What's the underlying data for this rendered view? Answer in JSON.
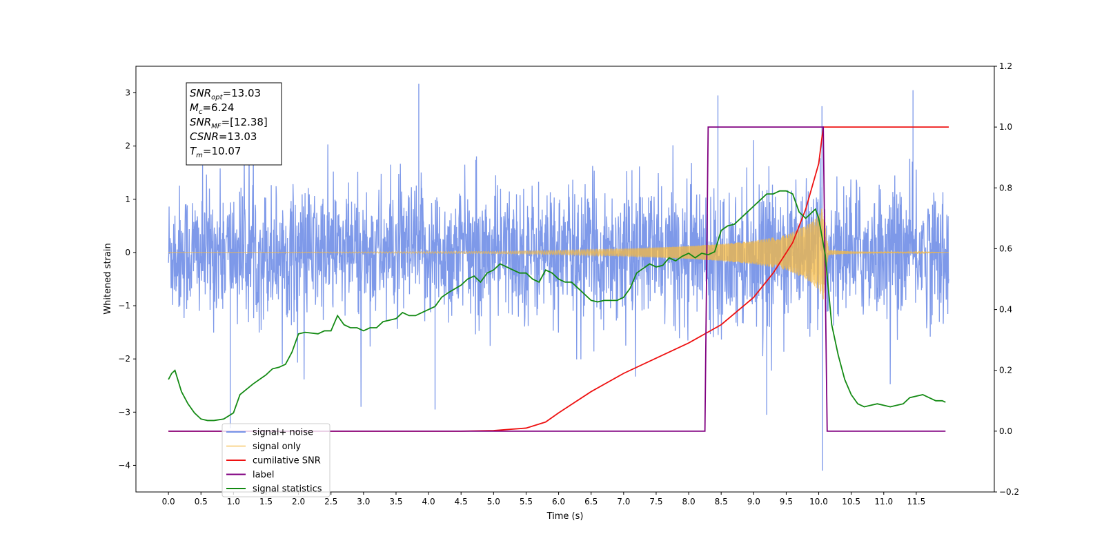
{
  "chart_data": {
    "type": "line",
    "xlabel": "Time (s)",
    "ylabel": "Whitened strain",
    "xlim": [
      -0.5,
      12.7
    ],
    "ylim": [
      -4.5,
      3.5
    ],
    "y2lim": [
      -0.2,
      1.2
    ],
    "x_ticks": [
      0.0,
      0.5,
      1.0,
      1.5,
      2.0,
      2.5,
      3.0,
      3.5,
      4.0,
      4.5,
      5.0,
      5.5,
      6.0,
      6.5,
      7.0,
      7.5,
      8.0,
      8.5,
      9.0,
      9.5,
      10.0,
      10.5,
      11.0,
      11.5
    ],
    "x_tick_labels": [
      "0.0",
      "0.5",
      "1.0",
      "1.5",
      "2.0",
      "2.5",
      "3.0",
      "3.5",
      "4.0",
      "4.5",
      "5.0",
      "5.5",
      "6.0",
      "6.5",
      "7.0",
      "7.5",
      "8.0",
      "8.5",
      "9.0",
      "9.5",
      "10.0",
      "10.5",
      "11.0",
      "11.5"
    ],
    "y_ticks": [
      3,
      2,
      1,
      0,
      -1,
      -2,
      -3,
      -4
    ],
    "y_tick_labels": [
      "3",
      "2",
      "1",
      "0",
      "−1",
      "−2",
      "−3",
      "−4"
    ],
    "y2_ticks": [
      1.2,
      1.0,
      0.8,
      0.6,
      0.4,
      0.2,
      0.0,
      -0.2
    ],
    "y2_tick_labels": [
      "1.2",
      "1.0",
      "0.8",
      "0.6",
      "0.4",
      "0.2",
      "0.0",
      "−0.2"
    ],
    "grid": false,
    "legend_position": "lower-left",
    "annotation_box": [
      {
        "base": "SNR",
        "sub": "opt",
        "value": "=13.03"
      },
      {
        "base": "M",
        "sub": "c",
        "value": "=6.24"
      },
      {
        "base": "SNR",
        "sub": "MF",
        "value": "=[12.38]"
      },
      {
        "base": "CSNR",
        "sub": "",
        "value": "=13.03"
      },
      {
        "base": "T",
        "sub": "m",
        "value": "=10.07"
      }
    ],
    "series": [
      {
        "name": "signal+ noise",
        "axis": "left",
        "color": "#7794e8",
        "kind": "noise",
        "x_range": [
          0.0,
          12.0
        ],
        "typical_envelope": 1.5,
        "max_spike": 3.17,
        "min_spike": -4.1
      },
      {
        "name": "signal only",
        "axis": "left",
        "color": "#f5b942",
        "kind": "chirp",
        "x_range": [
          0.0,
          12.0
        ],
        "merger_time": 10.07,
        "amplitude_envelope": [
          [
            0.0,
            0.0
          ],
          [
            5.0,
            0.02
          ],
          [
            6.0,
            0.04
          ],
          [
            7.0,
            0.07
          ],
          [
            8.0,
            0.12
          ],
          [
            8.5,
            0.16
          ],
          [
            9.0,
            0.22
          ],
          [
            9.5,
            0.33
          ],
          [
            9.8,
            0.5
          ],
          [
            10.0,
            0.7
          ],
          [
            10.07,
            0.9
          ],
          [
            10.15,
            0.05
          ],
          [
            10.5,
            0.02
          ],
          [
            12.0,
            0.0
          ]
        ]
      },
      {
        "name": "cumilative SNR",
        "axis": "right",
        "color": "#ee1111",
        "x": [
          0.0,
          4.5,
          5.0,
          5.5,
          5.8,
          6.0,
          6.5,
          7.0,
          7.5,
          8.0,
          8.5,
          9.0,
          9.3,
          9.6,
          9.8,
          10.0,
          10.07,
          12.0
        ],
        "values": [
          0.0,
          0.0,
          0.002,
          0.01,
          0.03,
          0.06,
          0.13,
          0.19,
          0.24,
          0.29,
          0.35,
          0.44,
          0.52,
          0.62,
          0.73,
          0.88,
          1.0,
          1.0
        ]
      },
      {
        "name": "label",
        "axis": "right",
        "color": "#800080",
        "x": [
          0.0,
          8.25,
          8.3,
          10.07,
          10.13,
          11.95
        ],
        "values": [
          0.0,
          0.0,
          1.0,
          1.0,
          0.0,
          0.0
        ]
      },
      {
        "name": "signal statistics",
        "axis": "right",
        "color": "#138a13",
        "x": [
          0.0,
          0.05,
          0.1,
          0.2,
          0.3,
          0.4,
          0.5,
          0.6,
          0.7,
          0.85,
          1.0,
          1.1,
          1.3,
          1.5,
          1.6,
          1.7,
          1.8,
          1.9,
          2.0,
          2.1,
          2.3,
          2.4,
          2.5,
          2.6,
          2.7,
          2.8,
          2.9,
          3.0,
          3.1,
          3.2,
          3.3,
          3.4,
          3.5,
          3.6,
          3.7,
          3.8,
          3.9,
          4.0,
          4.1,
          4.2,
          4.3,
          4.5,
          4.6,
          4.7,
          4.8,
          4.9,
          5.0,
          5.1,
          5.2,
          5.3,
          5.4,
          5.5,
          5.6,
          5.7,
          5.8,
          5.9,
          6.0,
          6.1,
          6.2,
          6.3,
          6.5,
          6.6,
          6.7,
          6.9,
          7.0,
          7.1,
          7.2,
          7.3,
          7.4,
          7.5,
          7.6,
          7.7,
          7.8,
          7.9,
          8.0,
          8.1,
          8.2,
          8.3,
          8.4,
          8.5,
          8.6,
          8.7,
          8.8,
          8.9,
          9.0,
          9.1,
          9.2,
          9.3,
          9.4,
          9.5,
          9.6,
          9.65,
          9.7,
          9.8,
          9.9,
          9.95,
          10.0,
          10.1,
          10.2,
          10.3,
          10.4,
          10.5,
          10.6,
          10.7,
          10.8,
          10.9,
          11.0,
          11.1,
          11.2,
          11.3,
          11.4,
          11.5,
          11.6,
          11.7,
          11.8,
          11.9,
          11.95
        ],
        "values": [
          0.17,
          0.19,
          0.2,
          0.13,
          0.09,
          0.06,
          0.04,
          0.035,
          0.035,
          0.04,
          0.06,
          0.12,
          0.155,
          0.185,
          0.205,
          0.21,
          0.22,
          0.26,
          0.32,
          0.325,
          0.32,
          0.33,
          0.33,
          0.38,
          0.35,
          0.34,
          0.34,
          0.33,
          0.34,
          0.34,
          0.36,
          0.365,
          0.37,
          0.39,
          0.38,
          0.38,
          0.39,
          0.4,
          0.41,
          0.44,
          0.455,
          0.48,
          0.5,
          0.51,
          0.49,
          0.52,
          0.53,
          0.55,
          0.54,
          0.53,
          0.52,
          0.52,
          0.5,
          0.49,
          0.53,
          0.52,
          0.5,
          0.49,
          0.49,
          0.47,
          0.43,
          0.425,
          0.43,
          0.43,
          0.44,
          0.47,
          0.52,
          0.535,
          0.55,
          0.54,
          0.545,
          0.57,
          0.56,
          0.575,
          0.585,
          0.57,
          0.585,
          0.58,
          0.59,
          0.66,
          0.675,
          0.68,
          0.7,
          0.72,
          0.74,
          0.76,
          0.78,
          0.78,
          0.79,
          0.79,
          0.78,
          0.75,
          0.72,
          0.7,
          0.72,
          0.73,
          0.7,
          0.58,
          0.35,
          0.25,
          0.17,
          0.12,
          0.09,
          0.08,
          0.085,
          0.09,
          0.085,
          0.08,
          0.085,
          0.09,
          0.11,
          0.115,
          0.12,
          0.11,
          0.1,
          0.1,
          0.095
        ]
      }
    ]
  }
}
